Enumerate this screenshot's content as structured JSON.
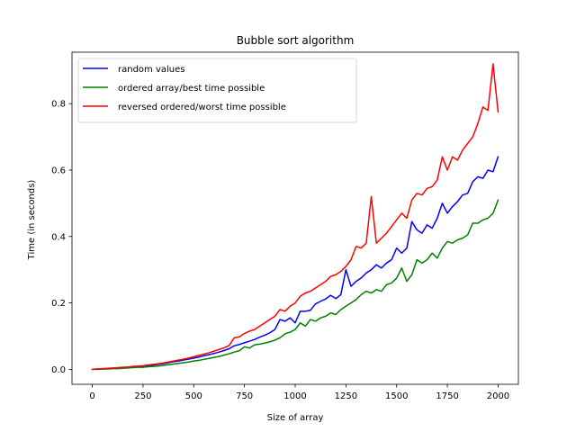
{
  "chart_data": {
    "type": "line",
    "title": "Bubble sort algorithm",
    "xlabel": "Size of array",
    "ylabel": "Time (in seconds)",
    "xlim": [
      -100,
      2100
    ],
    "ylim": [
      -0.045,
      0.955
    ],
    "xticks": [
      0,
      250,
      500,
      750,
      1000,
      1250,
      1500,
      1750,
      2000
    ],
    "xtick_labels": [
      "0",
      "250",
      "500",
      "750",
      "1000",
      "1250",
      "1500",
      "1750",
      "2000"
    ],
    "yticks": [
      0.0,
      0.2,
      0.4,
      0.6,
      0.8
    ],
    "ytick_labels": [
      "0.0",
      "0.2",
      "0.4",
      "0.6",
      "0.8"
    ],
    "grid": false,
    "legend": "upper-left",
    "x": [
      0,
      25,
      50,
      75,
      100,
      125,
      150,
      175,
      200,
      225,
      250,
      275,
      300,
      325,
      350,
      375,
      400,
      425,
      450,
      475,
      500,
      525,
      550,
      575,
      600,
      625,
      650,
      675,
      700,
      725,
      750,
      775,
      800,
      825,
      850,
      875,
      900,
      925,
      950,
      975,
      1000,
      1025,
      1050,
      1075,
      1100,
      1125,
      1150,
      1175,
      1200,
      1225,
      1250,
      1275,
      1300,
      1325,
      1350,
      1375,
      1400,
      1425,
      1450,
      1475,
      1500,
      1525,
      1550,
      1575,
      1600,
      1625,
      1650,
      1675,
      1700,
      1725,
      1750,
      1775,
      1800,
      1825,
      1850,
      1875,
      1900,
      1925,
      1950,
      1975,
      2000
    ],
    "series": [
      {
        "name": "random values",
        "color": "#0000ff",
        "values": [
          0.0,
          0.001,
          0.001,
          0.002,
          0.003,
          0.004,
          0.005,
          0.006,
          0.007,
          0.009,
          0.01,
          0.011,
          0.013,
          0.015,
          0.017,
          0.02,
          0.023,
          0.025,
          0.028,
          0.031,
          0.034,
          0.037,
          0.041,
          0.044,
          0.048,
          0.052,
          0.057,
          0.062,
          0.071,
          0.075,
          0.08,
          0.085,
          0.09,
          0.097,
          0.103,
          0.11,
          0.12,
          0.15,
          0.145,
          0.155,
          0.14,
          0.175,
          0.175,
          0.178,
          0.197,
          0.205,
          0.212,
          0.223,
          0.213,
          0.225,
          0.3,
          0.25,
          0.265,
          0.275,
          0.29,
          0.3,
          0.315,
          0.305,
          0.32,
          0.33,
          0.365,
          0.35,
          0.365,
          0.445,
          0.42,
          0.41,
          0.435,
          0.425,
          0.455,
          0.5,
          0.47,
          0.49,
          0.505,
          0.525,
          0.53,
          0.565,
          0.58,
          0.575,
          0.6,
          0.595,
          0.64
        ]
      },
      {
        "name": "ordered array/best time possible",
        "color": "#008000",
        "values": [
          0.0,
          0.0,
          0.001,
          0.001,
          0.002,
          0.002,
          0.003,
          0.004,
          0.005,
          0.006,
          0.006,
          0.008,
          0.009,
          0.01,
          0.012,
          0.014,
          0.016,
          0.018,
          0.02,
          0.022,
          0.025,
          0.027,
          0.03,
          0.033,
          0.036,
          0.039,
          0.043,
          0.047,
          0.052,
          0.056,
          0.068,
          0.064,
          0.074,
          0.076,
          0.079,
          0.083,
          0.088,
          0.095,
          0.107,
          0.112,
          0.12,
          0.14,
          0.13,
          0.15,
          0.145,
          0.155,
          0.16,
          0.17,
          0.165,
          0.18,
          0.19,
          0.2,
          0.21,
          0.225,
          0.235,
          0.23,
          0.24,
          0.235,
          0.255,
          0.26,
          0.275,
          0.305,
          0.265,
          0.285,
          0.33,
          0.32,
          0.33,
          0.35,
          0.335,
          0.365,
          0.385,
          0.38,
          0.39,
          0.395,
          0.405,
          0.44,
          0.44,
          0.45,
          0.455,
          0.47,
          0.51
        ]
      },
      {
        "name": "reversed ordered/worst time possible",
        "color": "#ff0000",
        "values": [
          0.0,
          0.001,
          0.002,
          0.003,
          0.004,
          0.005,
          0.006,
          0.007,
          0.009,
          0.01,
          0.011,
          0.013,
          0.015,
          0.017,
          0.019,
          0.022,
          0.025,
          0.028,
          0.031,
          0.034,
          0.038,
          0.042,
          0.046,
          0.05,
          0.055,
          0.06,
          0.065,
          0.072,
          0.095,
          0.098,
          0.108,
          0.115,
          0.12,
          0.13,
          0.14,
          0.15,
          0.16,
          0.18,
          0.175,
          0.19,
          0.2,
          0.22,
          0.23,
          0.235,
          0.245,
          0.255,
          0.265,
          0.28,
          0.285,
          0.295,
          0.31,
          0.33,
          0.37,
          0.365,
          0.38,
          0.52,
          0.38,
          0.395,
          0.41,
          0.43,
          0.45,
          0.47,
          0.455,
          0.51,
          0.53,
          0.525,
          0.545,
          0.55,
          0.57,
          0.64,
          0.6,
          0.64,
          0.63,
          0.66,
          0.68,
          0.7,
          0.74,
          0.79,
          0.78,
          0.92,
          0.775
        ]
      }
    ]
  }
}
